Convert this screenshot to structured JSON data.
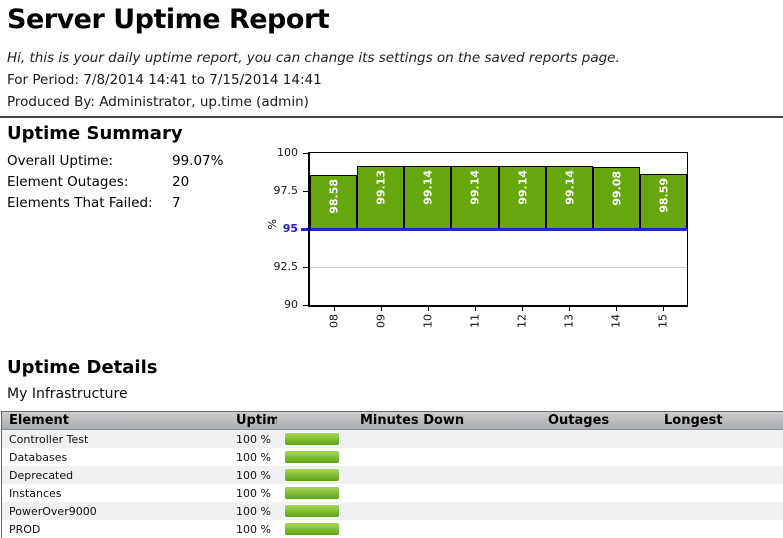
{
  "report": {
    "title": "Server Uptime Report",
    "greeting": "Hi, this is your daily uptime report, you can change its settings on the saved reports page.",
    "period_line": "For Period: 7/8/2014 14:41 to 7/15/2014 14:41",
    "produced_line": "Produced By: Administrator, up.time (admin)"
  },
  "summary": {
    "heading": "Uptime Summary",
    "rows": [
      {
        "label": "Overall Uptime:",
        "value": "99.07%"
      },
      {
        "label": "Element Outages:",
        "value": "20"
      },
      {
        "label": "Elements That Failed:",
        "value": "7"
      }
    ]
  },
  "chart_data": {
    "type": "bar",
    "title": "",
    "categories": [
      "08",
      "09",
      "10",
      "11",
      "12",
      "13",
      "14",
      "15"
    ],
    "values": [
      98.58,
      99.13,
      99.14,
      99.14,
      99.14,
      99.14,
      99.08,
      98.59
    ],
    "xlabel": "",
    "ylabel": "%",
    "ylim": [
      90,
      100
    ],
    "yticks": [
      90,
      92.5,
      95,
      97.5,
      100
    ],
    "threshold": 95,
    "grid": "horizontal",
    "legend": "none",
    "bars_baseline": 95,
    "colors": {
      "bar": "#66a70d",
      "bar_border": "#000000",
      "bar_label": "#ffffff",
      "threshold_line": "#2222dd",
      "threshold_label": "#2222cc",
      "gridline": "#cccccc",
      "axis": "#000000"
    }
  },
  "details": {
    "heading": "Uptime Details",
    "subheading": "My Infrastructure",
    "table": {
      "columns": [
        "Element",
        "Uptime",
        "",
        "Minutes Down",
        "Outages",
        "Longest"
      ],
      "rows": [
        {
          "element": "Controller Test",
          "uptime": "100 %",
          "minutes_down": "",
          "outages": "",
          "longest": ""
        },
        {
          "element": "Databases",
          "uptime": "100 %",
          "minutes_down": "",
          "outages": "",
          "longest": ""
        },
        {
          "element": "Deprecated",
          "uptime": "100 %",
          "minutes_down": "",
          "outages": "",
          "longest": ""
        },
        {
          "element": "Instances",
          "uptime": "100 %",
          "minutes_down": "",
          "outages": "",
          "longest": ""
        },
        {
          "element": "PowerOver9000",
          "uptime": "100 %",
          "minutes_down": "",
          "outages": "",
          "longest": ""
        },
        {
          "element": "PROD",
          "uptime": "100 %",
          "minutes_down": "",
          "outages": "",
          "longest": ""
        }
      ],
      "bar_gradient": {
        "top": "#aad65a",
        "bottom": "#5ea315"
      }
    }
  }
}
